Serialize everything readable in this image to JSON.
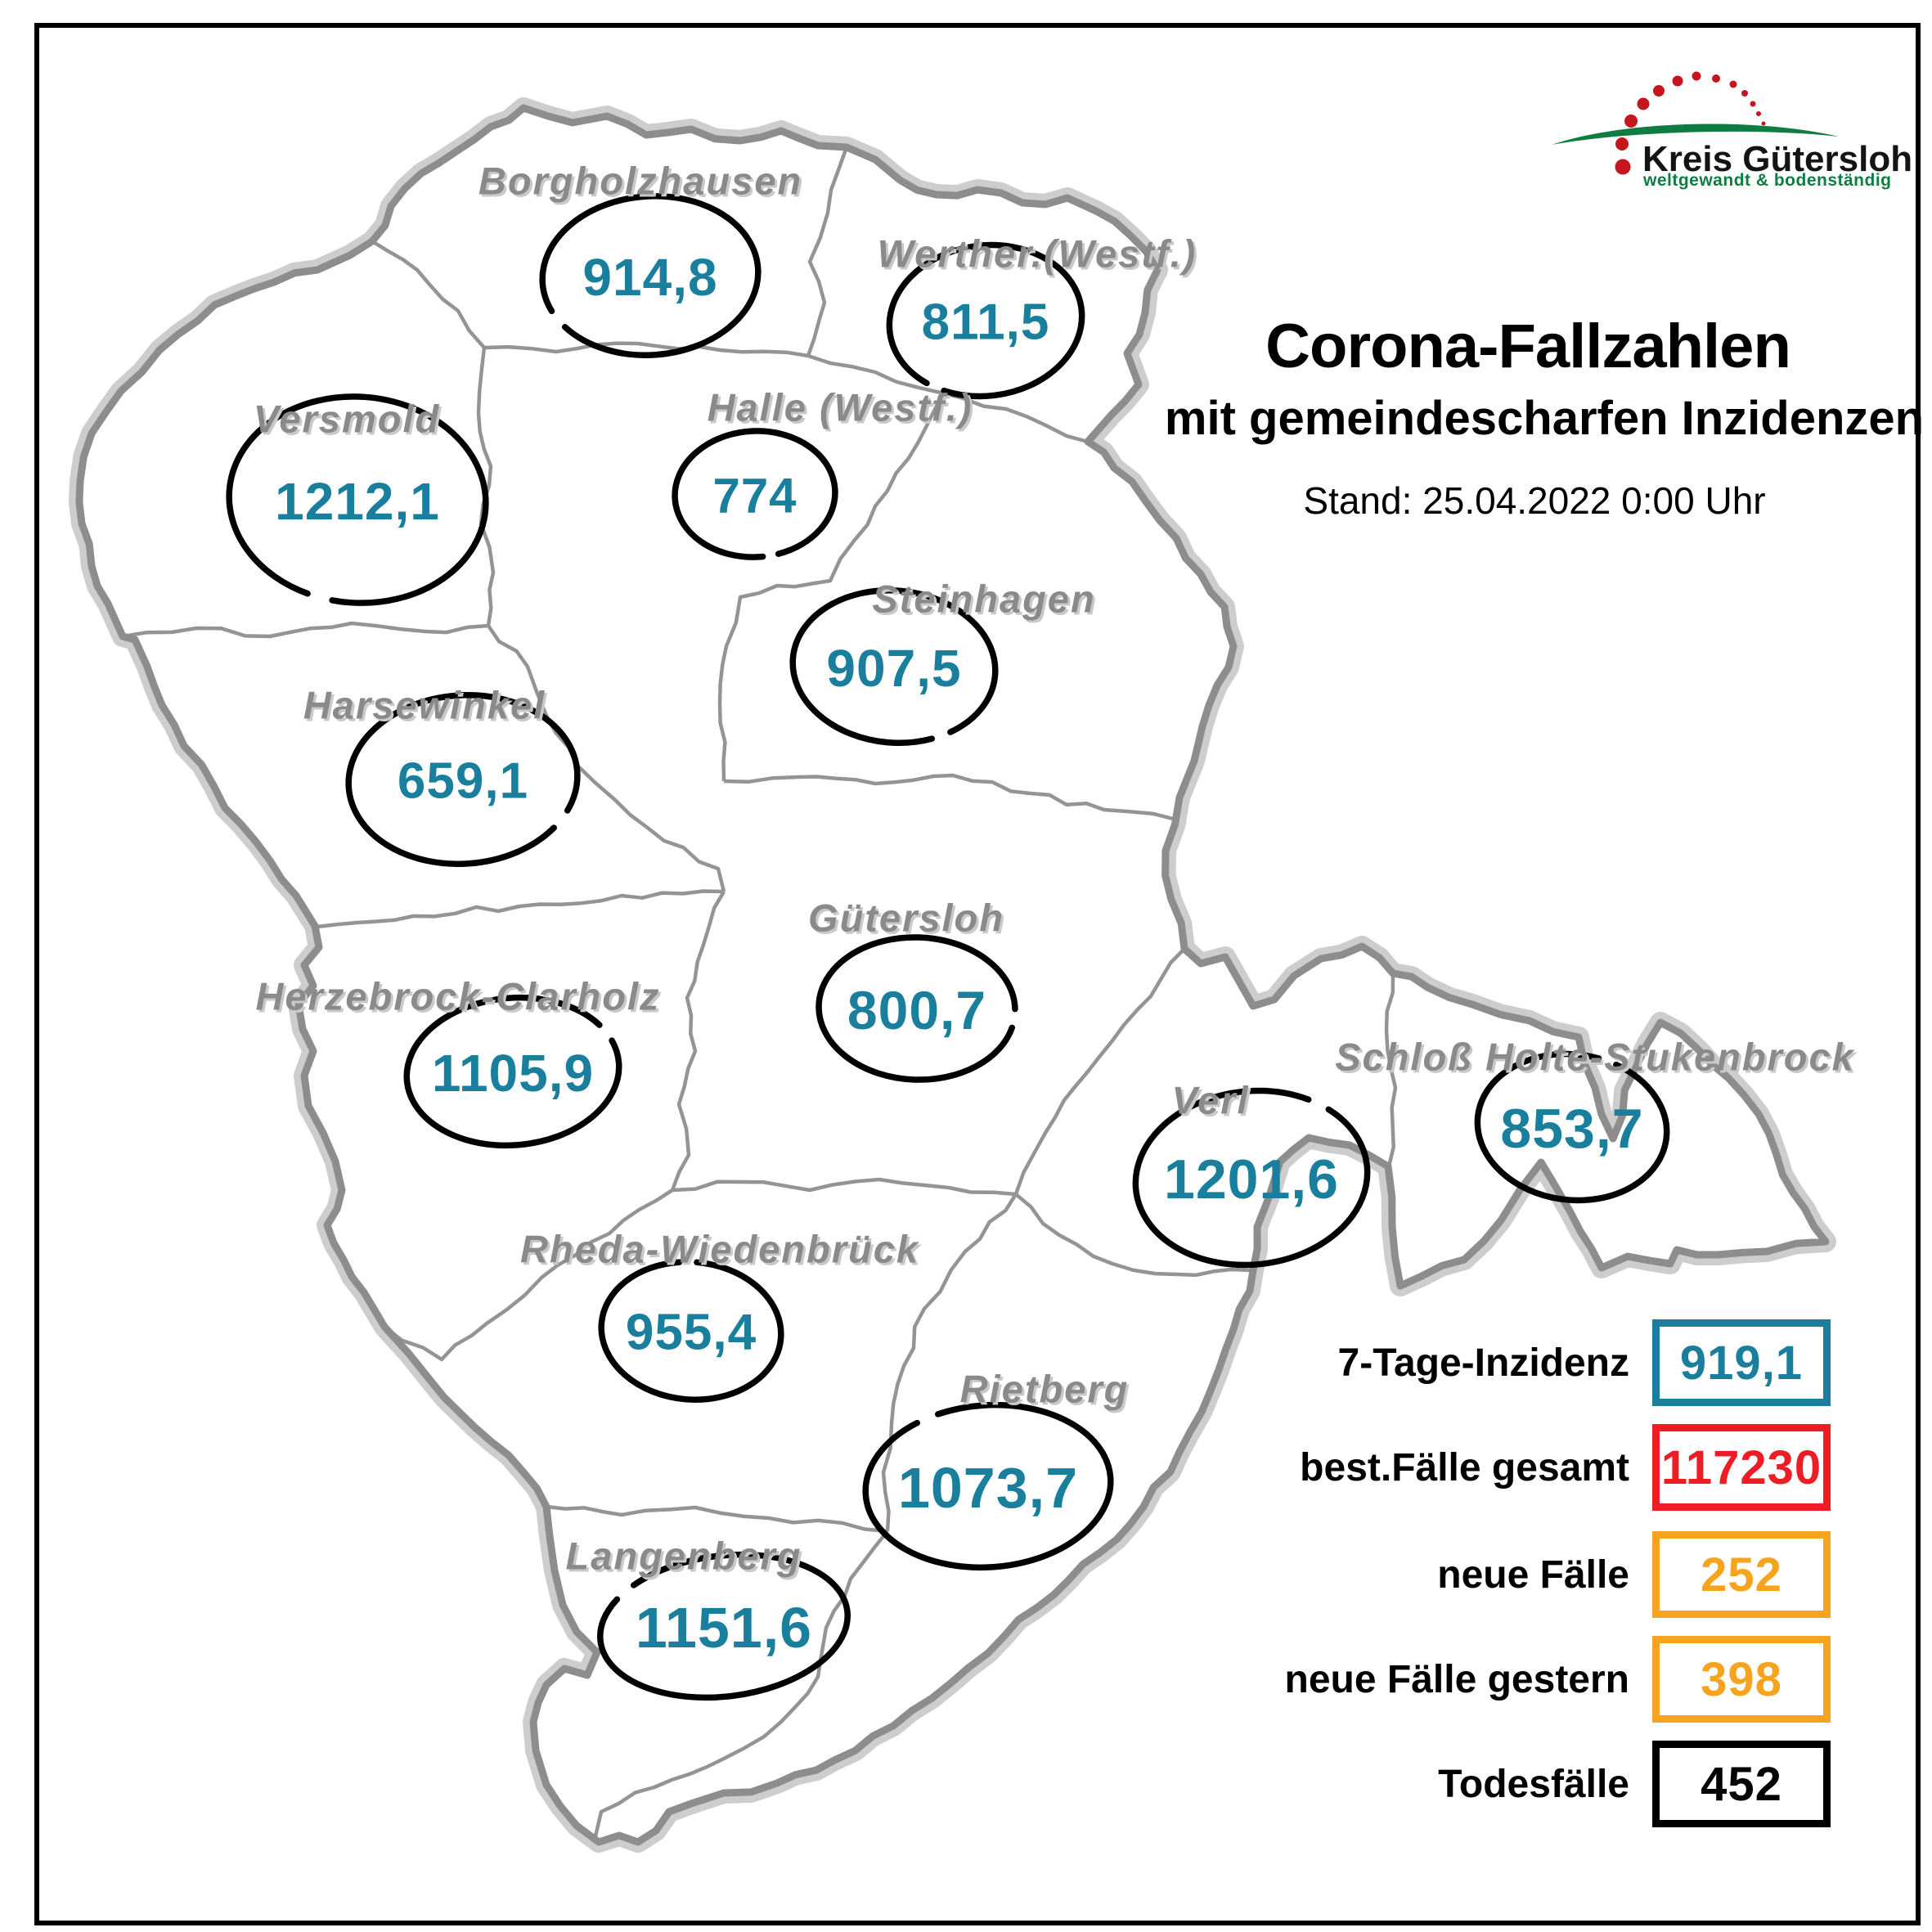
{
  "header": {
    "title": "Corona-Fallzahlen",
    "subtitle": "mit gemeindescharfen Inzidenzen",
    "date_line": "Stand: 25.04.2022 0:00 Uhr"
  },
  "logo": {
    "name": "Kreis Gütersloh",
    "tagline": "weltgewandt & bodenständig"
  },
  "map": {
    "municipalities": [
      {
        "id": "borgholzhausen",
        "name": "Borgholzhausen",
        "incidence": "914,8"
      },
      {
        "id": "werther",
        "name": "Werther.(Westf.)",
        "incidence": "811,5"
      },
      {
        "id": "versmold",
        "name": "Versmold",
        "incidence": "1212,1"
      },
      {
        "id": "halle",
        "name": "Halle (Westf.)",
        "incidence": "774"
      },
      {
        "id": "steinhagen",
        "name": "Steinhagen",
        "incidence": "907,5"
      },
      {
        "id": "harsewinkel",
        "name": "Harsewinkel",
        "incidence": "659,1"
      },
      {
        "id": "guetersloh",
        "name": "Gütersloh",
        "incidence": "800,7"
      },
      {
        "id": "herzebrock",
        "name": "Herzebrock-Clarholz",
        "incidence": "1105,9"
      },
      {
        "id": "verl",
        "name": "Verl",
        "incidence": "1201,6"
      },
      {
        "id": "shs",
        "name": "Schloß Holte-Stukenbrock",
        "incidence": "853,7"
      },
      {
        "id": "rheda",
        "name": "Rheda-Wiedenbrück",
        "incidence": "955,4"
      },
      {
        "id": "rietberg",
        "name": "Rietberg",
        "incidence": "1073,7"
      },
      {
        "id": "langenberg",
        "name": "Langenberg",
        "incidence": "1151,6"
      }
    ]
  },
  "legend": {
    "rows": [
      {
        "id": "inzidenz",
        "label": "7-Tage-Inzidenz",
        "value": "919,1",
        "color": "#1a7e9d"
      },
      {
        "id": "faelle",
        "label": "best.Fälle gesamt",
        "value": "117230",
        "color": "#ee1c25"
      },
      {
        "id": "neue",
        "label": "neue Fälle",
        "value": "252",
        "color": "#f6a41d"
      },
      {
        "id": "neue-gestern",
        "label": "neue Fälle gestern",
        "value": "398",
        "color": "#f6a41d"
      },
      {
        "id": "tote",
        "label": "Todesfälle",
        "value": "452",
        "color": "#000000"
      }
    ]
  },
  "colors": {
    "incidence_text": "#1a7e9d",
    "municipality_label": "#8a8a8a",
    "district_border": "#8d8d8d",
    "district_border_shadow": "#cdcdcd",
    "inner_border": "#949494",
    "ellipse": "#000000",
    "logo_red": "#c4161c",
    "logo_green": "#0f7c41"
  }
}
